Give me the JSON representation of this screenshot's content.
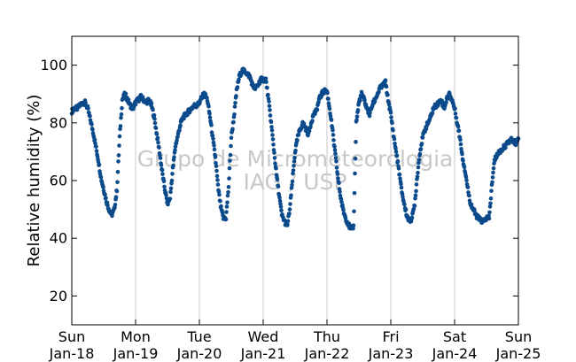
{
  "chart_data": {
    "type": "scatter",
    "ylabel": "Relative humidity (%)",
    "xlabel": "",
    "ylim": [
      10,
      110
    ],
    "xlim": [
      "2015-01-18",
      "2015-01-25"
    ],
    "grid": "vertical-only",
    "marker_color": "#0b4a8b",
    "yticks": [
      20,
      40,
      60,
      80,
      100
    ],
    "xticks": [
      {
        "day": "Sun",
        "date": "Jan-18"
      },
      {
        "day": "Mon",
        "date": "Jan-19"
      },
      {
        "day": "Tue",
        "date": "Jan-20"
      },
      {
        "day": "Wed",
        "date": "Jan-21"
      },
      {
        "day": "Thu",
        "date": "Jan-22"
      },
      {
        "day": "Fri",
        "date": "Jan-23"
      },
      {
        "day": "Sat",
        "date": "Jan-24"
      },
      {
        "day": "Sun",
        "date": "Jan-25"
      }
    ],
    "watermark": [
      "Grupo de Micrometeorologia",
      "IAG / USP"
    ],
    "series": [
      {
        "x": [
          "2015-01-18 00:00",
          "2015-01-18 01:00",
          "2015-01-18 02:00",
          "2015-01-18 03:00",
          "2015-01-18 04:00",
          "2015-01-18 05:00",
          "2015-01-18 06:00",
          "2015-01-18 07:00",
          "2015-01-18 08:00",
          "2015-01-18 09:00",
          "2015-01-18 10:00",
          "2015-01-18 11:00",
          "2015-01-18 12:00",
          "2015-01-18 13:00",
          "2015-01-18 14:00",
          "2015-01-18 15:00",
          "2015-01-18 16:00",
          "2015-01-18 17:00",
          "2015-01-18 18:00",
          "2015-01-18 19:00",
          "2015-01-18 20:00",
          "2015-01-18 21:00",
          "2015-01-18 22:00",
          "2015-01-18 23:00",
          "2015-01-19 00:00",
          "2015-01-19 01:00",
          "2015-01-19 02:00",
          "2015-01-19 03:00",
          "2015-01-19 04:00",
          "2015-01-19 05:00",
          "2015-01-19 06:00",
          "2015-01-19 07:00",
          "2015-01-19 08:00",
          "2015-01-19 09:00",
          "2015-01-19 10:00",
          "2015-01-19 11:00",
          "2015-01-19 12:00",
          "2015-01-19 13:00",
          "2015-01-19 14:00",
          "2015-01-19 15:00",
          "2015-01-19 16:00",
          "2015-01-19 17:00",
          "2015-01-19 18:00",
          "2015-01-19 19:00",
          "2015-01-19 20:00",
          "2015-01-19 21:00",
          "2015-01-19 22:00",
          "2015-01-19 23:00",
          "2015-01-20 00:00",
          "2015-01-20 01:00",
          "2015-01-20 02:00",
          "2015-01-20 03:00",
          "2015-01-20 04:00",
          "2015-01-20 05:00",
          "2015-01-20 06:00",
          "2015-01-20 07:00",
          "2015-01-20 08:00",
          "2015-01-20 09:00",
          "2015-01-20 10:00",
          "2015-01-20 11:00",
          "2015-01-20 12:00",
          "2015-01-20 13:00",
          "2015-01-20 14:00",
          "2015-01-20 15:00",
          "2015-01-20 16:00",
          "2015-01-20 17:00",
          "2015-01-20 18:00",
          "2015-01-20 19:00",
          "2015-01-20 20:00",
          "2015-01-20 21:00",
          "2015-01-20 22:00",
          "2015-01-20 23:00",
          "2015-01-21 00:00",
          "2015-01-21 01:00",
          "2015-01-21 02:00",
          "2015-01-21 03:00",
          "2015-01-21 04:00",
          "2015-01-21 05:00",
          "2015-01-21 06:00",
          "2015-01-21 07:00",
          "2015-01-21 08:00",
          "2015-01-21 09:00",
          "2015-01-21 10:00",
          "2015-01-21 11:00",
          "2015-01-21 12:00",
          "2015-01-21 13:00",
          "2015-01-21 14:00",
          "2015-01-21 15:00",
          "2015-01-21 16:00",
          "2015-01-21 17:00",
          "2015-01-21 18:00",
          "2015-01-21 19:00",
          "2015-01-21 20:00",
          "2015-01-21 21:00",
          "2015-01-21 22:00",
          "2015-01-21 23:00",
          "2015-01-22 00:00",
          "2015-01-22 01:00",
          "2015-01-22 02:00",
          "2015-01-22 03:00",
          "2015-01-22 04:00",
          "2015-01-22 05:00",
          "2015-01-22 06:00",
          "2015-01-22 07:00",
          "2015-01-22 08:00",
          "2015-01-22 09:00",
          "2015-01-22 10:00",
          "2015-01-22 11:00",
          "2015-01-22 12:00",
          "2015-01-22 13:00",
          "2015-01-22 14:00",
          "2015-01-22 15:00",
          "2015-01-22 16:00",
          "2015-01-22 17:00",
          "2015-01-22 18:00",
          "2015-01-22 19:00",
          "2015-01-22 20:00",
          "2015-01-22 21:00",
          "2015-01-22 22:00",
          "2015-01-22 23:00",
          "2015-01-23 00:00",
          "2015-01-23 01:00",
          "2015-01-23 02:00",
          "2015-01-23 03:00",
          "2015-01-23 04:00",
          "2015-01-23 05:00",
          "2015-01-23 06:00",
          "2015-01-23 07:00",
          "2015-01-23 08:00",
          "2015-01-23 09:00",
          "2015-01-23 10:00",
          "2015-01-23 11:00",
          "2015-01-23 12:00",
          "2015-01-23 13:00",
          "2015-01-23 14:00",
          "2015-01-23 15:00",
          "2015-01-23 16:00",
          "2015-01-23 17:00",
          "2015-01-23 18:00",
          "2015-01-23 19:00",
          "2015-01-23 20:00",
          "2015-01-23 21:00",
          "2015-01-23 22:00",
          "2015-01-23 23:00",
          "2015-01-24 00:00",
          "2015-01-24 01:00",
          "2015-01-24 02:00",
          "2015-01-24 03:00",
          "2015-01-24 04:00",
          "2015-01-24 05:00",
          "2015-01-24 06:00",
          "2015-01-24 07:00",
          "2015-01-24 08:00",
          "2015-01-24 09:00",
          "2015-01-24 10:00",
          "2015-01-24 11:00",
          "2015-01-24 12:00",
          "2015-01-24 13:00",
          "2015-01-24 14:00",
          "2015-01-24 15:00",
          "2015-01-24 16:00",
          "2015-01-24 17:00",
          "2015-01-24 18:00",
          "2015-01-24 19:00",
          "2015-01-24 20:00",
          "2015-01-24 21:00",
          "2015-01-24 22:00",
          "2015-01-24 23:00",
          "2015-01-25 00:00"
        ],
        "y": [
          84,
          85,
          85,
          86,
          87,
          87,
          85,
          81,
          77,
          72,
          67,
          61,
          57,
          53,
          50,
          48,
          50,
          57,
          75,
          88,
          90,
          88,
          86,
          85,
          87,
          88,
          89,
          88,
          87,
          88,
          86,
          82,
          76,
          70,
          63,
          57,
          52,
          54,
          64,
          72,
          76,
          80,
          82,
          83,
          84,
          85,
          86,
          86,
          87,
          89,
          90,
          88,
          82,
          75,
          68,
          58,
          51,
          47,
          47,
          58,
          75,
          82,
          91,
          96,
          98,
          98,
          97,
          96,
          93,
          92,
          93,
          95,
          95,
          95,
          88,
          80,
          71,
          62,
          55,
          48,
          46,
          44,
          50,
          60,
          70,
          75,
          78,
          80,
          78,
          76,
          80,
          83,
          84,
          88,
          90,
          91,
          91,
          85,
          78,
          70,
          62,
          55,
          50,
          47,
          45,
          43,
          44,
          80,
          87,
          90,
          88,
          85,
          83,
          86,
          88,
          90,
          92,
          93,
          94,
          88,
          83,
          76,
          70,
          64,
          57,
          52,
          48,
          46,
          47,
          52,
          62,
          70,
          75,
          78,
          80,
          82,
          85,
          86,
          87,
          88,
          85,
          88,
          90,
          88,
          85,
          80,
          75,
          68,
          63,
          57,
          52,
          50,
          48,
          47,
          46,
          46,
          47,
          47,
          58,
          67,
          69,
          70,
          71,
          72,
          73,
          74,
          74,
          73,
          75
        ]
      }
    ]
  }
}
